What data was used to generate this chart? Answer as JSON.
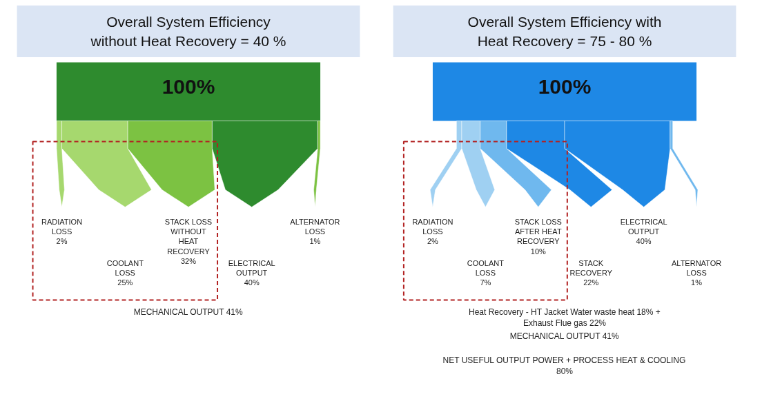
{
  "chart_data": [
    {
      "type": "other",
      "title": "Overall System Efficiency without Heat Recovery = 40 %",
      "categories": [
        "RADIATION LOSS",
        "COOLANT LOSS",
        "STACK LOSS WITHOUT HEAT RECOVERY",
        "ELECTRICAL OUTPUT",
        "ALTERNATOR LOSS"
      ],
      "values": [
        2,
        25,
        32,
        40,
        1
      ],
      "value_labels": [
        "2%",
        "25%",
        "32%",
        "40%",
        "1%"
      ],
      "colors": [
        "#a6d86e",
        "#a6d86e",
        "#7cc242",
        "#2e8b2e",
        "#7cc242"
      ],
      "annotations": [
        "100%",
        "MECHANICAL OUTPUT 41%"
      ]
    },
    {
      "type": "other",
      "title": "Overall System Efficiency with Heat Recovery = 75 - 80 %",
      "categories": [
        "RADIATION LOSS",
        "COOLANT LOSS",
        "STACK LOSS AFTER HEAT RECOVERY",
        "STACK RECOVERY",
        "ELECTRICAL OUTPUT",
        "ALTERNATOR LOSS"
      ],
      "values": [
        2,
        7,
        10,
        22,
        40,
        1
      ],
      "value_labels": [
        "2%",
        "7%",
        "10%",
        "22%",
        "40%",
        "1%"
      ],
      "colors": [
        "#9fd0f2",
        "#9fd0f2",
        "#6fb8ee",
        "#1e88e5",
        "#1e88e5",
        "#6fb8ee"
      ],
      "annotations": [
        "100%",
        "Heat Recovery - HT Jacket Water waste heat 18% + Exhaust Flue gas 22%",
        "MECHANICAL OUTPUT 41%",
        "NET USEFUL OUTPUT POWER + PROCESS HEAT & COOLING 80%"
      ]
    }
  ]
}
